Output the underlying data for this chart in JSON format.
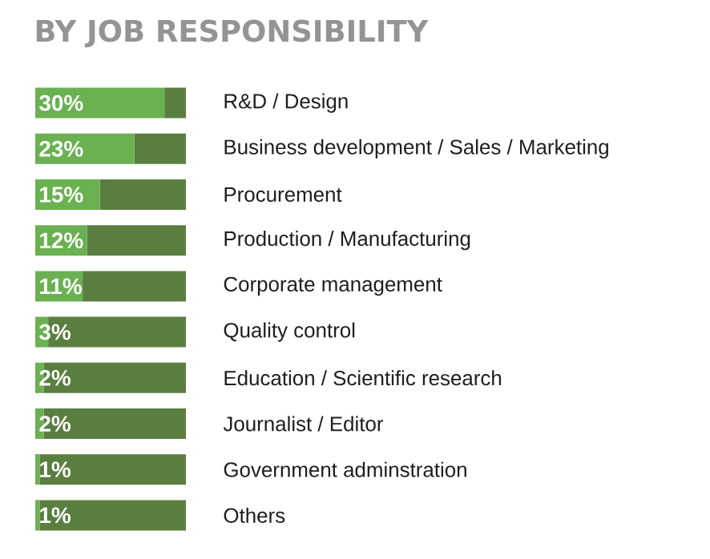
{
  "chart_data": {
    "type": "bar",
    "orientation": "horizontal",
    "stacked": true,
    "title": "BY JOB RESPONSIBILITY",
    "categories": [
      "R&D / Design",
      "Business development / Sales / Marketing",
      "Procurement",
      "Production / Manufacturing",
      "Corporate management",
      "Quality control",
      "Education / Scientific research",
      "Journalist / Editor",
      "Government adminstration",
      "Others"
    ],
    "xlim": [
      0,
      35
    ],
    "series": [
      {
        "color": "#6ab151",
        "values": [
          30,
          23,
          15,
          12,
          11,
          3,
          2,
          2,
          1,
          1
        ],
        "value_labels": [
          "30%",
          "23%",
          "15%",
          "12%",
          "11%",
          "3%",
          "2%",
          "2%",
          "1%",
          "1%"
        ]
      },
      {
        "color": "#5a7e3f",
        "values": [
          5,
          12,
          20,
          23,
          24,
          32,
          33,
          33,
          34,
          34
        ]
      }
    ]
  }
}
